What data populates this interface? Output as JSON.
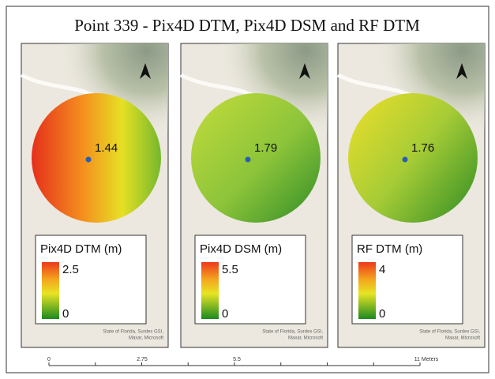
{
  "title": "Point 339 - Pix4D DTM, Pix4D DSM and RF DTM",
  "panels": [
    {
      "point_label": 1.44,
      "legend": {
        "title": "Pix4D DTM (m)",
        "max": 2.5,
        "min": 0
      },
      "attribution": [
        "State of Florida, Surdex GSI,",
        "Maxar, Microsoft"
      ]
    },
    {
      "point_label": 1.79,
      "legend": {
        "title": "Pix4D DSM (m)",
        "max": 5.5,
        "min": 0
      },
      "attribution": [
        "State of Florida, Surdex GSI,",
        "Maxar, Microsoft"
      ]
    },
    {
      "point_label": 1.76,
      "legend": {
        "title": "RF DTM (m)",
        "max": 4,
        "min": 0
      },
      "attribution": [
        "State of Florida, Surdex GSI,",
        "Maxar, Microsoft"
      ]
    }
  ],
  "scale_bar": {
    "labels": [
      0,
      2.75,
      5.5,
      "11 Meters"
    ]
  }
}
